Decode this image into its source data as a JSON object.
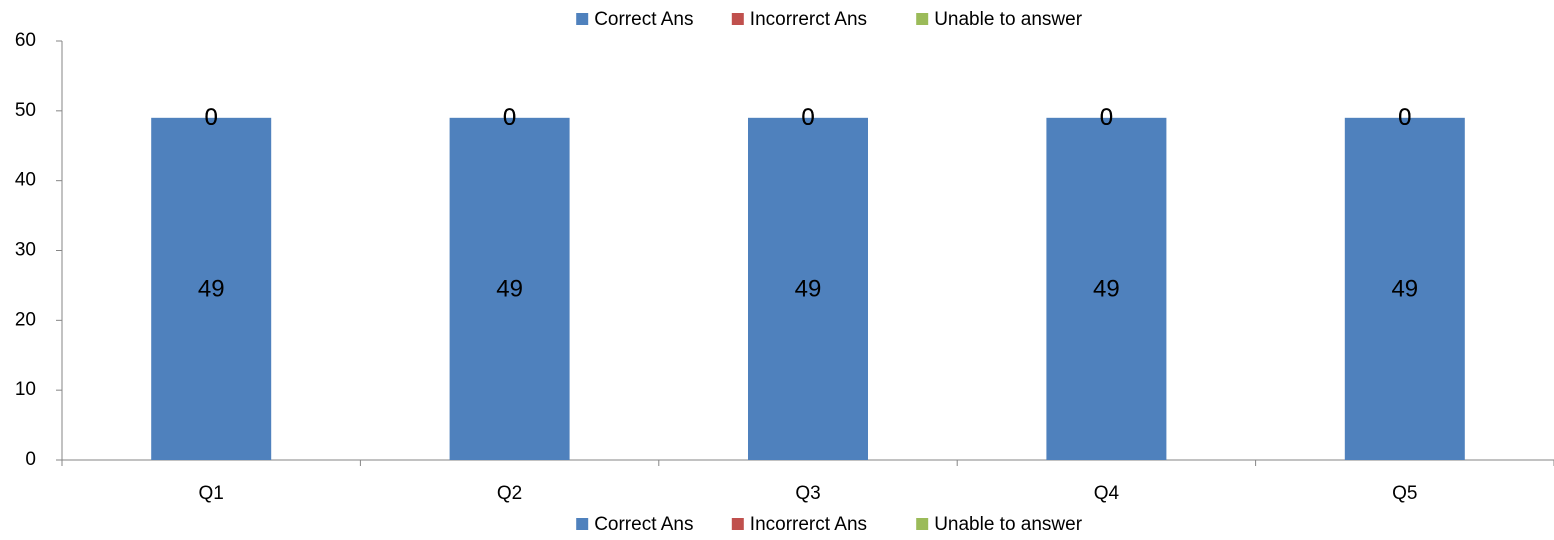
{
  "chart_data": {
    "type": "stacked_bar",
    "categories": [
      "Q1",
      "Q2",
      "Q3",
      "Q4",
      "Q5"
    ],
    "series": [
      {
        "name": "Correct Ans",
        "color": "#4f81bd",
        "values": [
          49,
          49,
          49,
          49,
          49
        ]
      },
      {
        "name": "Incorrerct Ans",
        "color": "#c0504d",
        "values": [
          0,
          0,
          0,
          0,
          0
        ]
      },
      {
        "name": "Unable to answer",
        "color": "#9bbb59",
        "values": [
          0,
          0,
          0,
          0,
          0
        ]
      }
    ],
    "ylim": [
      0,
      60
    ],
    "yticks": [
      0,
      10,
      20,
      30,
      40,
      50,
      60
    ],
    "grid": false,
    "legend": [
      "top",
      "bottom"
    ]
  }
}
